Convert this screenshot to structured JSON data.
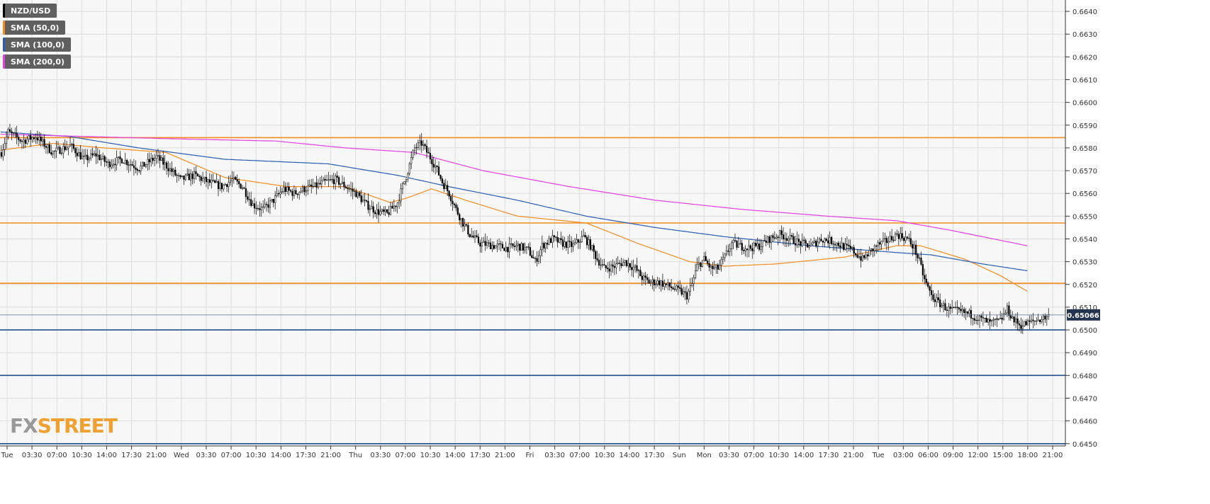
{
  "legend": [
    {
      "label": "NZD/USD",
      "color": "#000000"
    },
    {
      "label": "SMA (50,0)",
      "color": "#f28c1d"
    },
    {
      "label": "SMA (100,0)",
      "color": "#2a5db0"
    },
    {
      "label": "SMA (200,0)",
      "color": "#e43ee4"
    }
  ],
  "logo": {
    "fx": "FX",
    "street": "STREET"
  },
  "chart_data": {
    "type": "candlestick",
    "symbol": "NZD/USD",
    "ylim": [
      0.6449,
      0.6645
    ],
    "y_ticks": [
      "0.6450",
      "0.6460",
      "0.6470",
      "0.6480",
      "0.6490",
      "0.6500",
      "0.6510",
      "0.6520",
      "0.6530",
      "0.6540",
      "0.6550",
      "0.6560",
      "0.6570",
      "0.6580",
      "0.6590",
      "0.6600",
      "0.6610",
      "0.6620",
      "0.6630",
      "0.6640"
    ],
    "x_ticks": [
      "Tue",
      "03:30",
      "07:00",
      "10:30",
      "14:00",
      "17:30",
      "21:00",
      "Wed",
      "03:30",
      "07:00",
      "10:30",
      "14:00",
      "17:30",
      "21:00",
      "Thu",
      "03:30",
      "07:00",
      "10:30",
      "14:00",
      "17:30",
      "21:00",
      "Fri",
      "03:30",
      "07:00",
      "10:30",
      "14:00",
      "17:30",
      "Sun",
      "Mon",
      "03:30",
      "07:00",
      "10:30",
      "14:00",
      "17:30",
      "21:00",
      "Tue",
      "03:00",
      "06:00",
      "09:00",
      "12:00",
      "15:00",
      "18:00",
      "21:00"
    ],
    "current_price": "0.65066",
    "horizontal_levels": [
      {
        "value": 0.65845,
        "color": "#f28c1d"
      },
      {
        "value": 0.6547,
        "color": "#f28c1d"
      },
      {
        "value": 0.65205,
        "color": "#f28c1d"
      },
      {
        "value": 0.65,
        "color": "#1f4e8c"
      },
      {
        "value": 0.648,
        "color": "#1f4e8c"
      },
      {
        "value": 0.645,
        "color": "#1f4e8c"
      }
    ],
    "price_path": [
      [
        0,
        0.6578
      ],
      [
        4,
        0.6587
      ],
      [
        12,
        0.6583
      ],
      [
        20,
        0.6585
      ],
      [
        30,
        0.6578
      ],
      [
        40,
        0.6581
      ],
      [
        48,
        0.6575
      ],
      [
        55,
        0.6577
      ],
      [
        62,
        0.6573
      ],
      [
        70,
        0.6575
      ],
      [
        80,
        0.6571
      ],
      [
        90,
        0.6576
      ],
      [
        96,
        0.6572
      ],
      [
        104,
        0.6566
      ],
      [
        112,
        0.6568
      ],
      [
        120,
        0.6565
      ],
      [
        128,
        0.6563
      ],
      [
        134,
        0.6566
      ],
      [
        140,
        0.6563
      ],
      [
        146,
        0.6555
      ],
      [
        152,
        0.6553
      ],
      [
        158,
        0.6557
      ],
      [
        164,
        0.6562
      ],
      [
        170,
        0.656
      ],
      [
        176,
        0.6562
      ],
      [
        182,
        0.6563
      ],
      [
        188,
        0.6565
      ],
      [
        194,
        0.6566
      ],
      [
        200,
        0.6563
      ],
      [
        206,
        0.656
      ],
      [
        212,
        0.6555
      ],
      [
        218,
        0.6552
      ],
      [
        224,
        0.6551
      ],
      [
        230,
        0.6556
      ],
      [
        236,
        0.657
      ],
      [
        240,
        0.658
      ],
      [
        244,
        0.6582
      ],
      [
        248,
        0.6577
      ],
      [
        252,
        0.6572
      ],
      [
        256,
        0.6565
      ],
      [
        260,
        0.656
      ],
      [
        264,
        0.6553
      ],
      [
        268,
        0.6547
      ],
      [
        272,
        0.6542
      ],
      [
        278,
        0.6538
      ],
      [
        286,
        0.6537
      ],
      [
        294,
        0.6536
      ],
      [
        300,
        0.6537
      ],
      [
        306,
        0.6535
      ],
      [
        310,
        0.653
      ],
      [
        314,
        0.6537
      ],
      [
        320,
        0.654
      ],
      [
        326,
        0.6538
      ],
      [
        332,
        0.6537
      ],
      [
        338,
        0.6541
      ],
      [
        342,
        0.6537
      ],
      [
        346,
        0.6531
      ],
      [
        350,
        0.6527
      ],
      [
        356,
        0.6528
      ],
      [
        362,
        0.653
      ],
      [
        368,
        0.6527
      ],
      [
        372,
        0.6523
      ],
      [
        376,
        0.6521
      ],
      [
        382,
        0.6521
      ],
      [
        388,
        0.6519
      ],
      [
        394,
        0.6517
      ],
      [
        398,
        0.6515
      ],
      [
        401,
        0.652
      ],
      [
        404,
        0.6528
      ],
      [
        408,
        0.6531
      ],
      [
        412,
        0.6527
      ],
      [
        416,
        0.6527
      ],
      [
        420,
        0.6532
      ],
      [
        424,
        0.6538
      ],
      [
        428,
        0.6537
      ],
      [
        434,
        0.6536
      ],
      [
        440,
        0.6537
      ],
      [
        446,
        0.654
      ],
      [
        452,
        0.6542
      ],
      [
        458,
        0.654
      ],
      [
        464,
        0.6538
      ],
      [
        470,
        0.6537
      ],
      [
        476,
        0.654
      ],
      [
        482,
        0.6539
      ],
      [
        488,
        0.6537
      ],
      [
        494,
        0.6535
      ],
      [
        500,
        0.6531
      ],
      [
        504,
        0.6534
      ],
      [
        508,
        0.6537
      ],
      [
        514,
        0.6539
      ],
      [
        520,
        0.6542
      ],
      [
        526,
        0.654
      ],
      [
        530,
        0.6536
      ],
      [
        533,
        0.653
      ],
      [
        536,
        0.6522
      ],
      [
        540,
        0.6515
      ],
      [
        544,
        0.6512
      ],
      [
        550,
        0.6509
      ],
      [
        556,
        0.6508
      ],
      [
        562,
        0.6507
      ],
      [
        568,
        0.6505
      ],
      [
        574,
        0.6503
      ],
      [
        580,
        0.6504
      ],
      [
        584,
        0.6509
      ],
      [
        588,
        0.6504
      ],
      [
        592,
        0.6502
      ],
      [
        596,
        0.6503
      ],
      [
        600,
        0.6504
      ],
      [
        604,
        0.6505
      ],
      [
        608,
        0.6506
      ]
    ],
    "sma50": [
      [
        0,
        0.6579
      ],
      [
        30,
        0.6582
      ],
      [
        60,
        0.658
      ],
      [
        96,
        0.6578
      ],
      [
        130,
        0.6567
      ],
      [
        166,
        0.6563
      ],
      [
        200,
        0.6563
      ],
      [
        226,
        0.6556
      ],
      [
        236,
        0.6558
      ],
      [
        250,
        0.6562
      ],
      [
        270,
        0.6557
      ],
      [
        300,
        0.655
      ],
      [
        340,
        0.6547
      ],
      [
        370,
        0.6538
      ],
      [
        400,
        0.653
      ],
      [
        420,
        0.6528
      ],
      [
        450,
        0.6529
      ],
      [
        490,
        0.6532
      ],
      [
        520,
        0.6537
      ],
      [
        534,
        0.6537
      ],
      [
        560,
        0.6531
      ],
      [
        580,
        0.6524
      ],
      [
        596,
        0.6517
      ]
    ],
    "sma100": [
      [
        0,
        0.6587
      ],
      [
        40,
        0.6585
      ],
      [
        80,
        0.658
      ],
      [
        130,
        0.6575
      ],
      [
        190,
        0.6573
      ],
      [
        230,
        0.6568
      ],
      [
        260,
        0.6563
      ],
      [
        300,
        0.6557
      ],
      [
        340,
        0.655
      ],
      [
        380,
        0.6545
      ],
      [
        420,
        0.6541
      ],
      [
        470,
        0.6537
      ],
      [
        520,
        0.6534
      ],
      [
        540,
        0.6533
      ],
      [
        570,
        0.6529
      ],
      [
        596,
        0.6526
      ]
    ],
    "sma200": [
      [
        0,
        0.6586
      ],
      [
        100,
        0.6584
      ],
      [
        160,
        0.6583
      ],
      [
        200,
        0.658
      ],
      [
        240,
        0.6578
      ],
      [
        280,
        0.657
      ],
      [
        330,
        0.6563
      ],
      [
        380,
        0.6557
      ],
      [
        430,
        0.6553
      ],
      [
        480,
        0.655
      ],
      [
        520,
        0.6548
      ],
      [
        550,
        0.6544
      ],
      [
        596,
        0.6537
      ]
    ]
  }
}
